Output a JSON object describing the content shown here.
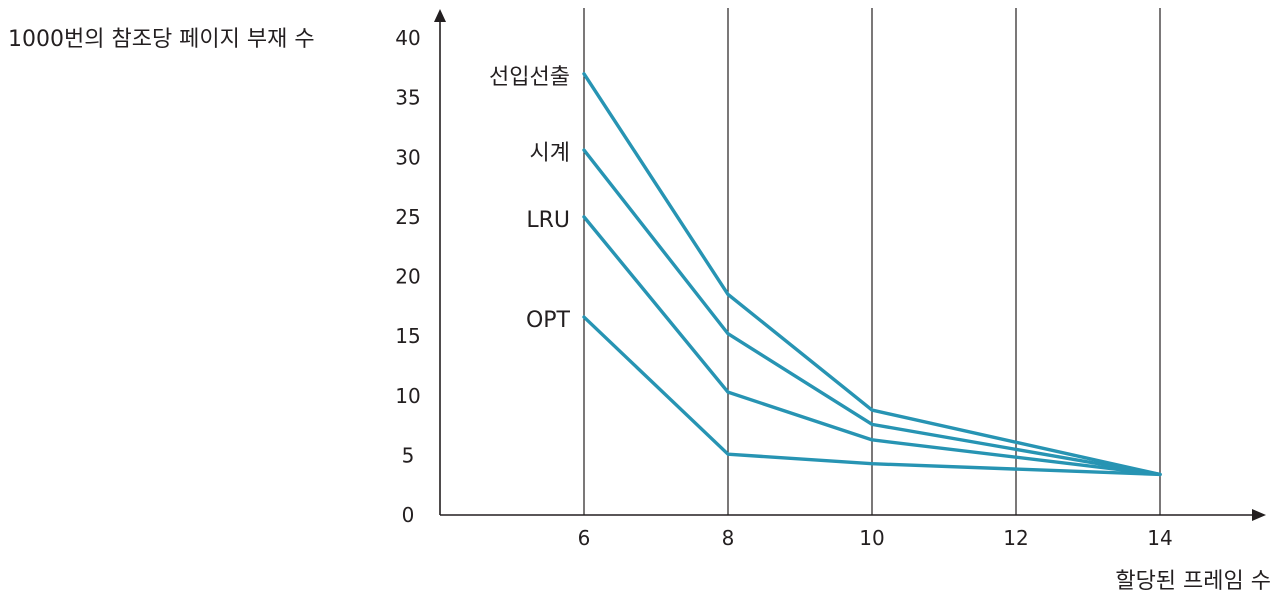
{
  "chart_data": {
    "type": "line",
    "title": "",
    "ylabel": "1000번의 참조당 페이지 부재 수",
    "xlabel": "할당된 프레임 수",
    "x": [
      6,
      8,
      10,
      12,
      14
    ],
    "x_ticks": [
      "6",
      "8",
      "10",
      "12",
      "14"
    ],
    "y_ticks": [
      "0",
      "5",
      "10",
      "15",
      "20",
      "25",
      "30",
      "35",
      "40"
    ],
    "xlim": [
      4,
      17
    ],
    "ylim": [
      0,
      40
    ],
    "grid": "vertical lines at x ticks",
    "legend": "series names labeled beside the line starts",
    "series": [
      {
        "name": "선입선출",
        "x": [
          6,
          8,
          10,
          14
        ],
        "values": [
          37,
          18.5,
          8.8,
          3.4
        ]
      },
      {
        "name": "시계",
        "x": [
          6,
          8,
          10,
          14
        ],
        "values": [
          30.6,
          15.2,
          7.6,
          3.4
        ]
      },
      {
        "name": "LRU",
        "x": [
          6,
          8,
          10,
          14
        ],
        "values": [
          25,
          10.3,
          6.3,
          3.4
        ]
      },
      {
        "name": "OPT",
        "x": [
          6,
          8,
          10,
          14
        ],
        "values": [
          16.6,
          5.1,
          4.3,
          3.4
        ]
      }
    ],
    "colors": {
      "series": "#2794b3",
      "axis": "#231f20",
      "grid": "#231f20"
    }
  }
}
